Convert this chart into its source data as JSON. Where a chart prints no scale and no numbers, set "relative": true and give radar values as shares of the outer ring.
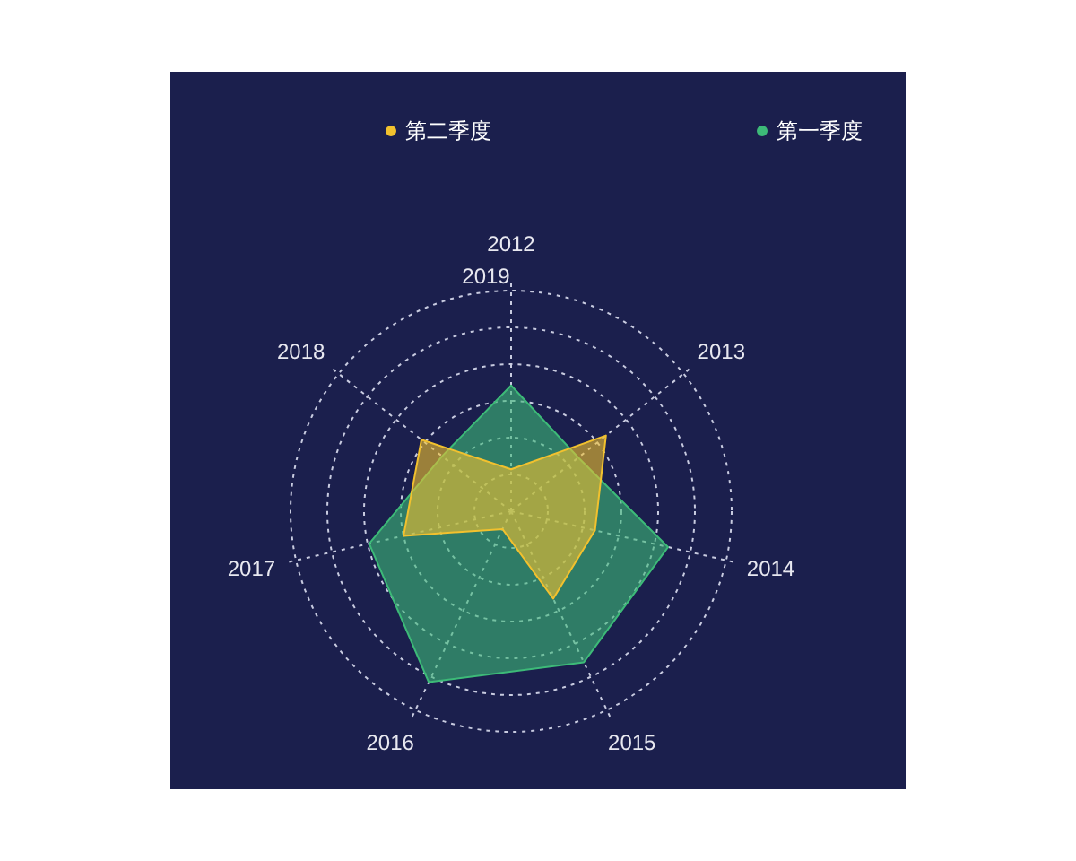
{
  "chart_data": {
    "type": "radar",
    "relative": true,
    "categories": [
      "2012",
      "2013",
      "2014",
      "2015",
      "2016",
      "2017",
      "2018"
    ],
    "series": [
      {
        "name": "第二季度",
        "color": "#f2c12e",
        "values": [
          0.19,
          0.55,
          0.39,
          0.44,
          0.09,
          0.5,
          0.52
        ]
      },
      {
        "name": "第一季度",
        "color": "#3dba78",
        "values": [
          0.57,
          0.39,
          0.73,
          0.76,
          0.86,
          0.66,
          0.4
        ]
      }
    ],
    "annotations": [
      "2019"
    ],
    "legend": "top"
  }
}
